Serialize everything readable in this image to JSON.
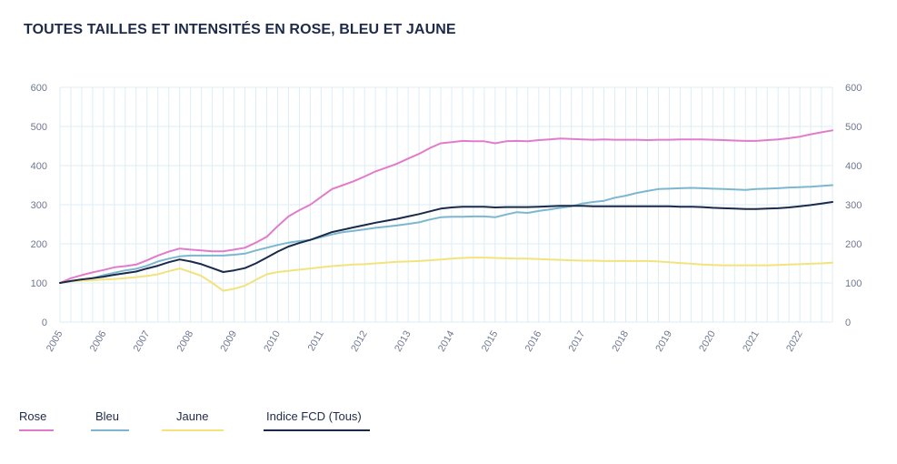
{
  "title": "TOUTES TAILLES ET INTENSITÉS EN ROSE, BLEU ET JAUNE",
  "colors": {
    "rose": "#e17ccb",
    "bleu": "#7db7cf",
    "jaune": "#f2e37c",
    "indice": "#1c2a4a",
    "grid": "#dcedf4",
    "tick": "#6f7890"
  },
  "chart_data": {
    "type": "line",
    "title": "TOUTES TAILLES ET INTENSITÉS EN ROSE, BLEU ET JAUNE",
    "xlabel": "",
    "ylabel": "",
    "xlim": [
      2005,
      2022.75
    ],
    "ylim": [
      0,
      600
    ],
    "y_ticks": [
      0,
      100,
      200,
      300,
      400,
      500,
      600
    ],
    "x_ticks": [
      "2005",
      "2006",
      "2007",
      "2008",
      "2009",
      "2010",
      "2011",
      "2012",
      "2013",
      "2014",
      "2015",
      "2016",
      "2017",
      "2018",
      "2019",
      "2020",
      "2021",
      "2022"
    ],
    "grid": true,
    "legend_position": "bottom-left",
    "series": [
      {
        "name": "Rose",
        "color": "#e17ccb",
        "x": [
          2005,
          2005.25,
          2005.5,
          2005.75,
          2006,
          2006.25,
          2006.5,
          2006.75,
          2007,
          2007.25,
          2007.5,
          2007.75,
          2008,
          2008.25,
          2008.5,
          2008.75,
          2009,
          2009.25,
          2009.5,
          2009.75,
          2010,
          2010.25,
          2010.5,
          2010.75,
          2011,
          2011.25,
          2011.5,
          2011.75,
          2012,
          2012.25,
          2012.5,
          2012.75,
          2013,
          2013.25,
          2013.5,
          2013.75,
          2014,
          2014.25,
          2014.5,
          2014.75,
          2015,
          2015.25,
          2015.5,
          2015.75,
          2016,
          2016.25,
          2016.5,
          2016.75,
          2017,
          2017.25,
          2017.5,
          2017.75,
          2018,
          2018.25,
          2018.5,
          2018.75,
          2019,
          2019.25,
          2019.5,
          2019.75,
          2020,
          2020.25,
          2020.5,
          2020.75,
          2021,
          2021.25,
          2021.5,
          2021.75,
          2022,
          2022.25,
          2022.5,
          2022.75
        ],
        "values": [
          100,
          112,
          120,
          127,
          133,
          140,
          143,
          147,
          158,
          170,
          180,
          188,
          185,
          183,
          181,
          181,
          185,
          190,
          203,
          218,
          245,
          270,
          286,
          300,
          320,
          340,
          350,
          360,
          372,
          385,
          395,
          405,
          418,
          430,
          445,
          457,
          460,
          463,
          462,
          462,
          457,
          462,
          463,
          462,
          465,
          467,
          469,
          468,
          467,
          466,
          467,
          466,
          466,
          466,
          465,
          466,
          466,
          467,
          467,
          467,
          466,
          465,
          464,
          463,
          463,
          465,
          467,
          470,
          474,
          480,
          485,
          490
        ]
      },
      {
        "name": "Bleu",
        "color": "#7db7cf",
        "x": [
          2005,
          2005.25,
          2005.5,
          2005.75,
          2006,
          2006.25,
          2006.5,
          2006.75,
          2007,
          2007.25,
          2007.5,
          2007.75,
          2008,
          2008.25,
          2008.5,
          2008.75,
          2009,
          2009.25,
          2009.5,
          2009.75,
          2010,
          2010.25,
          2010.5,
          2010.75,
          2011,
          2011.25,
          2011.5,
          2011.75,
          2012,
          2012.25,
          2012.5,
          2012.75,
          2013,
          2013.25,
          2013.5,
          2013.75,
          2014,
          2014.25,
          2014.5,
          2014.75,
          2015,
          2015.25,
          2015.5,
          2015.75,
          2016,
          2016.25,
          2016.5,
          2016.75,
          2017,
          2017.25,
          2017.5,
          2017.75,
          2018,
          2018.25,
          2018.5,
          2018.75,
          2019,
          2019.25,
          2019.5,
          2019.75,
          2020,
          2020.25,
          2020.5,
          2020.75,
          2021,
          2021.25,
          2021.5,
          2021.75,
          2022,
          2022.25,
          2022.5,
          2022.75
        ],
        "values": [
          100,
          105,
          108,
          112,
          120,
          126,
          132,
          136,
          144,
          155,
          162,
          168,
          170,
          170,
          170,
          170,
          172,
          175,
          183,
          190,
          197,
          203,
          207,
          210,
          217,
          224,
          230,
          233,
          237,
          241,
          244,
          247,
          251,
          255,
          262,
          268,
          269,
          269,
          270,
          270,
          268,
          275,
          281,
          279,
          284,
          288,
          292,
          296,
          303,
          307,
          310,
          318,
          323,
          330,
          335,
          340,
          341,
          342,
          343,
          342,
          341,
          340,
          339,
          338,
          340,
          341,
          342,
          344,
          345,
          346,
          348,
          350
        ]
      },
      {
        "name": "Jaune",
        "color": "#f2e37c",
        "x": [
          2005,
          2005.25,
          2005.5,
          2005.75,
          2006,
          2006.25,
          2006.5,
          2006.75,
          2007,
          2007.25,
          2007.5,
          2007.75,
          2008,
          2008.25,
          2008.5,
          2008.75,
          2009,
          2009.25,
          2009.5,
          2009.75,
          2010,
          2010.25,
          2010.5,
          2010.75,
          2011,
          2011.25,
          2011.5,
          2011.75,
          2012,
          2012.25,
          2012.5,
          2012.75,
          2013,
          2013.25,
          2013.5,
          2013.75,
          2014,
          2014.25,
          2014.5,
          2014.75,
          2015,
          2015.25,
          2015.5,
          2015.75,
          2016,
          2016.25,
          2016.5,
          2016.75,
          2017,
          2017.25,
          2017.5,
          2017.75,
          2018,
          2018.25,
          2018.5,
          2018.75,
          2019,
          2019.25,
          2019.5,
          2019.75,
          2020,
          2020.25,
          2020.5,
          2020.75,
          2021,
          2021.25,
          2021.5,
          2021.75,
          2022,
          2022.25,
          2022.5,
          2022.75
        ],
        "values": [
          100,
          104,
          106,
          107,
          109,
          110,
          112,
          115,
          118,
          122,
          130,
          137,
          128,
          118,
          100,
          80,
          85,
          93,
          108,
          122,
          128,
          131,
          134,
          137,
          140,
          143,
          145,
          147,
          148,
          150,
          152,
          154,
          155,
          156,
          158,
          160,
          162,
          164,
          165,
          165,
          164,
          163,
          162,
          162,
          161,
          160,
          159,
          158,
          157,
          157,
          156,
          156,
          156,
          156,
          156,
          155,
          153,
          151,
          149,
          147,
          146,
          145,
          145,
          145,
          145,
          145,
          146,
          147,
          148,
          149,
          150,
          152
        ]
      },
      {
        "name": "Indice FCD (Tous)",
        "color": "#1c2a4a",
        "x": [
          2005,
          2005.25,
          2005.5,
          2005.75,
          2006,
          2006.25,
          2006.5,
          2006.75,
          2007,
          2007.25,
          2007.5,
          2007.75,
          2008,
          2008.25,
          2008.5,
          2008.75,
          2009,
          2009.25,
          2009.5,
          2009.75,
          2010,
          2010.25,
          2010.5,
          2010.75,
          2011,
          2011.25,
          2011.5,
          2011.75,
          2012,
          2012.25,
          2012.5,
          2012.75,
          2013,
          2013.25,
          2013.5,
          2013.75,
          2014,
          2014.25,
          2014.5,
          2014.75,
          2015,
          2015.25,
          2015.5,
          2015.75,
          2016,
          2016.25,
          2016.5,
          2016.75,
          2017,
          2017.25,
          2017.5,
          2017.75,
          2018,
          2018.25,
          2018.5,
          2018.75,
          2019,
          2019.25,
          2019.5,
          2019.75,
          2020,
          2020.25,
          2020.5,
          2020.75,
          2021,
          2021.25,
          2021.5,
          2021.75,
          2022,
          2022.25,
          2022.5,
          2022.75
        ],
        "values": [
          100,
          105,
          109,
          112,
          116,
          121,
          125,
          129,
          137,
          144,
          153,
          160,
          155,
          148,
          138,
          128,
          132,
          138,
          150,
          165,
          180,
          193,
          202,
          210,
          220,
          230,
          236,
          242,
          248,
          254,
          259,
          264,
          270,
          276,
          283,
          290,
          293,
          295,
          295,
          295,
          293,
          294,
          294,
          294,
          295,
          296,
          297,
          297,
          297,
          296,
          296,
          296,
          296,
          296,
          296,
          296,
          296,
          295,
          295,
          294,
          292,
          291,
          290,
          289,
          289,
          290,
          291,
          293,
          296,
          299,
          303,
          307
        ]
      }
    ]
  },
  "legend": {
    "items": [
      {
        "label": "Rose",
        "color": "#e17ccb"
      },
      {
        "label": "Bleu",
        "color": "#7db7cf"
      },
      {
        "label": "Jaune",
        "color": "#f2e37c"
      },
      {
        "label": "Indice FCD (Tous)",
        "color": "#1c2a4a"
      }
    ]
  }
}
